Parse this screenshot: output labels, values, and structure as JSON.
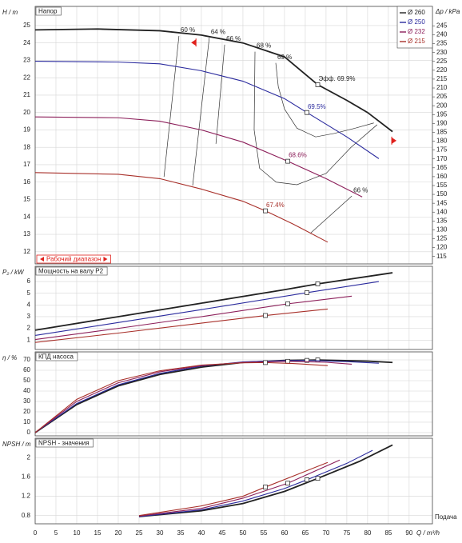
{
  "chart_data": [
    {
      "type": "line",
      "title": "Напор",
      "ylabel": "H / m",
      "y2label": "Δp / kPa",
      "xlim": [
        0,
        95.6
      ],
      "xticks": [
        0,
        5,
        10,
        15,
        20,
        25,
        30,
        35,
        40,
        45,
        50,
        55,
        60,
        65,
        70,
        75,
        80,
        85,
        90
      ],
      "ylim": [
        11.3,
        26.1
      ],
      "yticks": [
        12,
        13,
        14,
        15,
        16,
        17,
        18,
        19,
        20,
        21,
        22,
        23,
        24,
        25
      ],
      "y2lim": [
        110.8,
        256.0
      ],
      "y2ticks": [
        115,
        120,
        125,
        130,
        135,
        140,
        145,
        150,
        155,
        160,
        165,
        170,
        175,
        180,
        185,
        190,
        195,
        200,
        205,
        210,
        215,
        220,
        225,
        230,
        235,
        240,
        245
      ],
      "grid": true,
      "legend": "top-right",
      "series": [
        {
          "name": "Ø 260",
          "color": "#222222",
          "x": [
            0,
            15,
            30,
            40,
            50,
            60,
            68,
            75,
            80,
            86
          ],
          "values": [
            24.75,
            24.8,
            24.7,
            24.45,
            24.0,
            23.2,
            21.6,
            20.7,
            20.0,
            18.9
          ],
          "duty_point": {
            "x": 68,
            "value": 21.6,
            "label": "Эфф. 69.9%"
          }
        },
        {
          "name": "Ø 250",
          "color": "#2b2b9e",
          "x": [
            0,
            20,
            30,
            40,
            50,
            60,
            65.4,
            75,
            82.7
          ],
          "values": [
            22.95,
            22.9,
            22.8,
            22.4,
            21.8,
            20.8,
            20.0,
            18.6,
            17.35
          ],
          "duty_point": {
            "x": 65.4,
            "value": 20.0,
            "label": "69.5%"
          }
        },
        {
          "name": "Ø 232",
          "color": "#8c1f5a",
          "x": [
            0,
            20,
            30,
            40,
            50,
            60.8,
            70,
            78.7
          ],
          "values": [
            19.75,
            19.7,
            19.5,
            19.0,
            18.3,
            17.2,
            16.2,
            15.15
          ],
          "duty_point": {
            "x": 60.8,
            "value": 17.2,
            "label": "68.6%"
          }
        },
        {
          "name": "Ø 215",
          "color": "#a8302a",
          "x": [
            0,
            20,
            30,
            40,
            50,
            55.4,
            62,
            70.4
          ],
          "values": [
            16.55,
            16.45,
            16.2,
            15.6,
            14.9,
            14.35,
            13.6,
            12.55
          ],
          "duty_point": {
            "x": 55.4,
            "value": 14.35,
            "label": "67.4%"
          }
        }
      ],
      "iso_efficiency": [
        {
          "label": "60 %",
          "x": [
            34.6,
            31.0
          ],
          "values": [
            24.4,
            16.3
          ]
        },
        {
          "label": "64 %",
          "x": [
            41.9,
            37.9
          ],
          "values": [
            24.3,
            15.8
          ]
        },
        {
          "label": "66 %",
          "x": [
            45.6,
            43.5
          ],
          "values": [
            23.9,
            18.2
          ]
        },
        {
          "label": "68 %",
          "x": [
            52.9,
            52.7,
            54,
            58,
            63,
            70,
            76,
            82.3
          ],
          "values": [
            23.5,
            19,
            16.8,
            16.0,
            15.85,
            16.5,
            18.0,
            19.3
          ]
        },
        {
          "label": "69 %",
          "x": [
            57.9,
            58.5,
            60,
            63,
            67.5,
            72,
            77,
            81.5
          ],
          "values": [
            22.85,
            21.5,
            20.2,
            19.1,
            18.6,
            18.8,
            19.1,
            19.4
          ]
        },
        {
          "label": "66 %",
          "x": [
            76.2,
            66.2
          ],
          "values": [
            15.2,
            13.05
          ]
        }
      ],
      "operating_range": {
        "label": "Рабочий диапазон",
        "x": [
          38.7,
          85.8
        ]
      }
    },
    {
      "type": "line",
      "title": "Мощность на валу P2",
      "ylabel": "P₂ / kW",
      "xlim": [
        0,
        95.6
      ],
      "xticks": [
        0,
        5,
        10,
        15,
        20,
        25,
        30,
        35,
        40,
        45,
        50,
        55,
        60,
        65,
        70,
        75,
        80,
        85,
        90
      ],
      "ylim": [
        0.2,
        7.3
      ],
      "yticks": [
        1,
        2,
        3,
        4,
        5,
        6
      ],
      "grid": true,
      "series": [
        {
          "name": "Ø 260",
          "color": "#222222",
          "x": [
            0,
            20,
            40,
            60,
            68,
            86
          ],
          "values": [
            1.85,
            3.0,
            4.15,
            5.3,
            5.8,
            6.75
          ],
          "duty_point": {
            "x": 68,
            "value": 5.8
          }
        },
        {
          "name": "Ø 250",
          "color": "#2b2b9e",
          "x": [
            0,
            20,
            40,
            65.4,
            82.7
          ],
          "values": [
            1.4,
            2.5,
            3.6,
            5.05,
            6.0
          ],
          "duty_point": {
            "x": 65.4,
            "value": 5.05
          }
        },
        {
          "name": "Ø 232",
          "color": "#8c1f5a",
          "x": [
            0,
            20,
            40,
            60.8,
            76.2
          ],
          "values": [
            1.05,
            2.0,
            3.0,
            4.1,
            4.75
          ],
          "duty_point": {
            "x": 60.8,
            "value": 4.1
          }
        },
        {
          "name": "Ø 215",
          "color": "#a8302a",
          "x": [
            0,
            20,
            40,
            55.4,
            70.4
          ],
          "values": [
            0.8,
            1.6,
            2.45,
            3.1,
            3.65
          ],
          "duty_point": {
            "x": 55.4,
            "value": 3.1
          }
        }
      ]
    },
    {
      "type": "line",
      "title": "КПД насоса",
      "ylabel": "η / %",
      "xlim": [
        0,
        95.6
      ],
      "xticks": [
        0,
        5,
        10,
        15,
        20,
        25,
        30,
        35,
        40,
        45,
        50,
        55,
        60,
        65,
        70,
        75,
        80,
        85,
        90
      ],
      "ylim": [
        -3.1,
        77.7
      ],
      "yticks": [
        0,
        10,
        20,
        30,
        40,
        50,
        60,
        70
      ],
      "grid": true,
      "series": [
        {
          "name": "Ø 260",
          "color": "#222222",
          "x": [
            0,
            10,
            20,
            30,
            40,
            50,
            60,
            68,
            80,
            86
          ],
          "values": [
            0,
            27,
            45,
            56,
            63,
            67.5,
            69.5,
            69.9,
            68.8,
            67.5
          ],
          "duty_point": {
            "x": 68,
            "value": 69.9
          }
        },
        {
          "name": "Ø 250",
          "color": "#2b2b9e",
          "x": [
            0,
            10,
            20,
            30,
            40,
            50,
            60,
            65.4,
            75,
            82.7
          ],
          "values": [
            0,
            28,
            46,
            57,
            64,
            68,
            69.3,
            69.5,
            68.3,
            66.8
          ],
          "duty_point": {
            "x": 65.4,
            "value": 69.5
          }
        },
        {
          "name": "Ø 232",
          "color": "#8c1f5a",
          "x": [
            0,
            10,
            20,
            30,
            40,
            50,
            60.8,
            70,
            76.2
          ],
          "values": [
            0,
            30,
            48,
            58.5,
            64.5,
            67.6,
            68.6,
            67.7,
            65.8
          ],
          "duty_point": {
            "x": 60.8,
            "value": 68.6
          }
        },
        {
          "name": "Ø 215",
          "color": "#a8302a",
          "x": [
            0,
            10,
            20,
            30,
            40,
            50,
            55.4,
            62,
            70.4
          ],
          "values": [
            0,
            32,
            50,
            59.5,
            65,
            67.2,
            67.4,
            66.5,
            64.5
          ],
          "duty_point": {
            "x": 55.4,
            "value": 67.4
          }
        }
      ]
    },
    {
      "type": "line",
      "title": "NPSH - значения",
      "ylabel": "NPSH / m",
      "xlabel": "Q / m³/h",
      "x_caption": "Подача",
      "show_xtick_labels": true,
      "xlim": [
        0,
        95.6
      ],
      "xticks": [
        0,
        5,
        10,
        15,
        20,
        25,
        30,
        35,
        40,
        45,
        50,
        55,
        60,
        65,
        70,
        75,
        80,
        85,
        90
      ],
      "ylim": [
        0.63,
        2.4
      ],
      "yticks": [
        0.8,
        1.2,
        1.6,
        2
      ],
      "grid": true,
      "series": [
        {
          "name": "Ø 260",
          "color": "#222222",
          "x": [
            25,
            40,
            50,
            60,
            68,
            78,
            86
          ],
          "values": [
            0.78,
            0.9,
            1.05,
            1.3,
            1.57,
            1.92,
            2.26
          ],
          "duty_point": {
            "x": 68,
            "value": 1.57
          }
        },
        {
          "name": "Ø 250",
          "color": "#2b2b9e",
          "x": [
            25,
            40,
            50,
            60,
            65.4,
            75,
            81.2
          ],
          "values": [
            0.78,
            0.92,
            1.1,
            1.36,
            1.54,
            1.88,
            2.15
          ],
          "duty_point": {
            "x": 65.4,
            "value": 1.54
          }
        },
        {
          "name": "Ø 232",
          "color": "#8c1f5a",
          "x": [
            25,
            40,
            50,
            60.8,
            73.3
          ],
          "values": [
            0.79,
            0.95,
            1.16,
            1.47,
            1.95
          ],
          "duty_point": {
            "x": 60.8,
            "value": 1.47
          }
        },
        {
          "name": "Ø 215",
          "color": "#a8302a",
          "x": [
            25,
            40,
            50,
            55.4,
            70.4
          ],
          "values": [
            0.8,
            1.0,
            1.2,
            1.39,
            1.9
          ],
          "duty_point": {
            "x": 55.4,
            "value": 1.39
          }
        }
      ]
    }
  ]
}
